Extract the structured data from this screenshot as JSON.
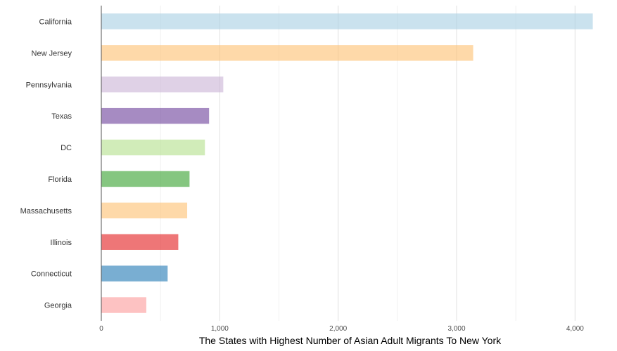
{
  "chart_data": {
    "type": "bar",
    "orientation": "horizontal",
    "categories": [
      "California",
      "New Jersey",
      "Pennsylvania",
      "Texas",
      "DC",
      "Florida",
      "Massachusetts",
      "Illinois",
      "Connecticut",
      "Georgia"
    ],
    "values": [
      4150,
      3140,
      1030,
      910,
      875,
      745,
      725,
      650,
      560,
      380
    ],
    "colors": [
      "#a6cee3",
      "#fdbf6f",
      "#cab2d6",
      "#6a3d9a",
      "#b2df8a",
      "#33a02c",
      "#fdbf6f",
      "#e31a1c",
      "#1f78b4",
      "#fb9a99"
    ],
    "opacity": 0.6,
    "xlabel": "The States with Highest Number of Asian Adult Migrants To New York",
    "xlim": [
      0,
      4200
    ],
    "x_ticks": [
      0,
      1000,
      2000,
      3000,
      4000
    ],
    "x_tick_labels": [
      "0",
      "1,000",
      "2,000",
      "3,000",
      "4,000"
    ],
    "grid": true,
    "legend": "none"
  }
}
